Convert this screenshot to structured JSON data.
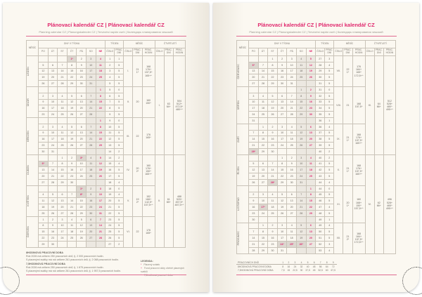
{
  "title": "Plánovací kalendář CZ | Plánovací kalendář CZ",
  "subtitle": "Planning calendar CZ | Planungskalender CZ | Tervezési naptár cseh | Календарь планирования чешский",
  "headers": {
    "month": "MĚSÍC",
    "days_group": "DNY V TÝDNU",
    "week_group": "TÝDEN",
    "month_group": "MĚSÍC",
    "quarter_group": "ČTVRTLETÍ",
    "days": [
      "PO",
      "ÚT",
      "ST",
      "ČT",
      "PÁ",
      "SO",
      "NE"
    ],
    "cislo": "ČÍSLO",
    "prac_dni": "PRAC. DNÍ",
    "prac_hodin": "PRAC. HODIN"
  },
  "colors": {
    "accent": "#e0296e",
    "weekend_bg": "#ece8e1",
    "holiday_bg": "#dcd7cf"
  },
  "pages": [
    {
      "months": [
        {
          "name": "LEDEN",
          "roman": "I.",
          "days": "21",
          "hol": "1*",
          "hours": [
            "168",
            "176+",
            "157,5^",
            "165+^"
          ],
          "rows": [
            [
              "",
              "",
              "",
              "1*",
              "2",
              "3",
              "4"
            ],
            [
              "5",
              "6",
              "7",
              "8",
              "9",
              "10",
              "11"
            ],
            [
              "12",
              "13",
              "14",
              "15",
              "16",
              "17",
              "18"
            ],
            [
              "19",
              "20",
              "21",
              "22",
              "23",
              "24",
              "25"
            ],
            [
              "26",
              "27",
              "28",
              "29",
              "30",
              "31",
              ""
            ]
          ],
          "weeks": [
            "1",
            "2",
            "3",
            "4",
            "5"
          ],
          "work": [
            "1",
            "5",
            "5",
            "5",
            "5"
          ]
        },
        {
          "name": "ÚNOR",
          "roman": "II.",
          "days": "20",
          "hol": "",
          "hours": [
            "160",
            "150^"
          ],
          "rows": [
            [
              "",
              "",
              "",
              "",
              "",
              "",
              "1"
            ],
            [
              "2",
              "3",
              "4",
              "5",
              "6",
              "7",
              "8"
            ],
            [
              "9",
              "10",
              "11",
              "12",
              "13",
              "14",
              "15"
            ],
            [
              "16",
              "17",
              "18",
              "19",
              "20",
              "21",
              "22"
            ],
            [
              "23",
              "24",
              "25",
              "26",
              "27",
              "28",
              ""
            ]
          ],
          "weeks": [
            "5",
            "6",
            "7",
            "8",
            "9"
          ],
          "work": [
            "0",
            "5",
            "5",
            "5",
            "5"
          ]
        },
        {
          "name": "BŘEZEN",
          "roman": "III.",
          "days": "22",
          "hol": "",
          "hours": [
            "176",
            "165^"
          ],
          "rows": [
            [
              "",
              "",
              "",
              "",
              "",
              "",
              "1"
            ],
            [
              "2",
              "3",
              "4",
              "5",
              "6",
              "7",
              "8"
            ],
            [
              "9",
              "10",
              "11",
              "12",
              "13",
              "14",
              "15"
            ],
            [
              "16",
              "17",
              "18",
              "19",
              "20",
              "21",
              "22"
            ],
            [
              "23",
              "24",
              "25",
              "26",
              "27",
              "28",
              "29"
            ],
            [
              "30",
              "31",
              "",
              "",
              "",
              "",
              ""
            ]
          ],
          "weeks": [
            "9",
            "10",
            "11",
            "12",
            "13",
            "14"
          ],
          "work": [
            "0",
            "5",
            "5",
            "5",
            "5",
            "2"
          ]
        },
        {
          "name": "DUBEN",
          "roman": "IV.",
          "days": "20",
          "hol": "2*",
          "hours": [
            "160",
            "176+",
            "150^",
            "165+^"
          ],
          "rows": [
            [
              "",
              "",
              "1",
              "2",
              "3*",
              "4",
              "5"
            ],
            [
              "6*",
              "7",
              "8",
              "9",
              "10",
              "11",
              "12"
            ],
            [
              "13",
              "14",
              "15",
              "16",
              "17",
              "18",
              "19"
            ],
            [
              "20",
              "21",
              "22",
              "23",
              "24",
              "25",
              "26"
            ],
            [
              "27",
              "28",
              "29",
              "30",
              "",
              "",
              ""
            ]
          ],
          "weeks": [
            "14",
            "15",
            "16",
            "17",
            "18"
          ],
          "work": [
            "2",
            "4",
            "5",
            "5",
            "4"
          ]
        },
        {
          "name": "KVĚTEN",
          "roman": "V.",
          "days": "19",
          "hol": "2*",
          "hours": [
            "152",
            "168+",
            "142,5^",
            "157,5+^"
          ],
          "rows": [
            [
              "",
              "",
              "",
              "",
              "1*",
              "2",
              "3"
            ],
            [
              "4",
              "5",
              "6",
              "7",
              "8*",
              "9",
              "10"
            ],
            [
              "11",
              "12",
              "13",
              "14",
              "15",
              "16",
              "17"
            ],
            [
              "18",
              "19",
              "20",
              "21",
              "22",
              "23",
              "24"
            ],
            [
              "25",
              "26",
              "27",
              "28",
              "29",
              "30",
              "31"
            ]
          ],
          "weeks": [
            "18",
            "19",
            "20",
            "21",
            "22"
          ],
          "work": [
            "0",
            "4",
            "5",
            "5",
            "5"
          ]
        },
        {
          "name": "ČERVEN",
          "roman": "VI.",
          "days": "22",
          "hol": "",
          "hours": [
            "176",
            "165^"
          ],
          "rows": [
            [
              "1",
              "2",
              "3",
              "4",
              "5",
              "6",
              "7"
            ],
            [
              "8",
              "9",
              "10",
              "11",
              "12",
              "13",
              "14"
            ],
            [
              "15",
              "16",
              "17",
              "18",
              "19",
              "20",
              "21"
            ],
            [
              "22",
              "23",
              "24",
              "25",
              "26",
              "27",
              "28"
            ],
            [
              "29",
              "30",
              "",
              "",
              "",
              "",
              ""
            ]
          ],
          "weeks": [
            "23",
            "24",
            "25",
            "26",
            "27"
          ],
          "work": [
            "5",
            "5",
            "5",
            "5",
            "2"
          ]
        }
      ],
      "quarters": [
        {
          "roman": "I.",
          "days": "63",
          "days_plus": "64+",
          "hours": [
            "504",
            "512+",
            "472,5^",
            "480+^"
          ]
        },
        {
          "roman": "II.",
          "days": "61",
          "days_plus": "65+",
          "hours": [
            "488",
            "520+",
            "457,5^",
            "487,5+^"
          ]
        }
      ],
      "footer": {
        "h8_title": "8HODINOVÁ PRACOVNÍ DOBA",
        "h8_l1": "Rok 2026 má celkem 250 pracovních dnů, tj. 2 000 pracovních hodin.",
        "h8_l2": "S placenými svátky má rok celkem 261 pracovních dnů, tj. 2 088 pracovních hodin.",
        "h75_title": "7,5HODINOVÁ PRACOVNÍ DOBA",
        "h75_l1": "Rok 2026 má celkem 250 pracovních dnů, tj. 1 875 pracovních hodin.",
        "h75_l2": "S placenými svátky má rok celkem 261 pracovních dnů, tj. 1 957,5 pracovních hodin.",
        "legend_title": "LEGENDA:",
        "legend": [
          {
            "mark": "*",
            "text": "Placený svátek"
          },
          {
            "mark": "+",
            "text": "Fond pracovní doby včetně placených svátků"
          },
          {
            "mark": "^",
            "text": "7,5hodinová pracovní doba"
          }
        ]
      }
    },
    {
      "months": [
        {
          "name": "ČERVENEC",
          "roman": "VII.",
          "days": "22",
          "hol": "1*",
          "hours": [
            "176",
            "184+",
            "165^",
            "172,5+^"
          ],
          "rows": [
            [
              "",
              "",
              "1",
              "2",
              "3",
              "4",
              "5"
            ],
            [
              "6*",
              "7",
              "8",
              "9",
              "10",
              "11",
              "12"
            ],
            [
              "13",
              "14",
              "15",
              "16",
              "17",
              "18",
              "19"
            ],
            [
              "20",
              "21",
              "22",
              "23",
              "24",
              "25",
              "26"
            ],
            [
              "27",
              "28",
              "29",
              "30",
              "31",
              "",
              ""
            ]
          ],
          "weeks": [
            "27",
            "28",
            "29",
            "30",
            "31"
          ],
          "work": [
            "3",
            "4",
            "5",
            "5",
            "5"
          ]
        },
        {
          "name": "SRPEN",
          "roman": "VIII.",
          "days": "21",
          "hol": "",
          "hours": [
            "168",
            "157,5^"
          ],
          "rows": [
            [
              "",
              "",
              "",
              "",
              "",
              "1",
              "2"
            ],
            [
              "3",
              "4",
              "5",
              "6",
              "7",
              "8",
              "9"
            ],
            [
              "10",
              "11",
              "12",
              "13",
              "14",
              "15",
              "16"
            ],
            [
              "17",
              "18",
              "19",
              "20",
              "21",
              "22",
              "23"
            ],
            [
              "24",
              "25",
              "26",
              "27",
              "28",
              "29",
              "30"
            ],
            [
              "31",
              "",
              "",
              "",
              "",
              "",
              ""
            ]
          ],
          "weeks": [
            "31",
            "32",
            "33",
            "34",
            "35",
            "36"
          ],
          "work": [
            "0",
            "5",
            "5",
            "5",
            "5",
            "1"
          ]
        },
        {
          "name": "ZÁŘÍ",
          "roman": "IX.",
          "days": "21",
          "hol": "1*",
          "hours": [
            "168",
            "176+",
            "157,5^",
            "165+^"
          ],
          "rows": [
            [
              "",
              "1",
              "2",
              "3",
              "4",
              "5",
              "6"
            ],
            [
              "7",
              "8",
              "9",
              "10",
              "11",
              "12",
              "13"
            ],
            [
              "14",
              "15",
              "16",
              "17",
              "18",
              "19",
              "20"
            ],
            [
              "21",
              "22",
              "23",
              "24",
              "25",
              "26",
              "27"
            ],
            [
              "28*",
              "29",
              "30",
              "",
              "",
              "",
              ""
            ]
          ],
          "weeks": [
            "36",
            "37",
            "38",
            "39",
            "40"
          ],
          "work": [
            "4",
            "5",
            "5",
            "5",
            "2"
          ]
        },
        {
          "name": "ŘÍJEN",
          "roman": "X.",
          "days": "21",
          "hol": "1*",
          "hours": [
            "168",
            "176+",
            "157,5^",
            "165+^"
          ],
          "rows": [
            [
              "",
              "",
              "",
              "1",
              "2",
              "3",
              "4"
            ],
            [
              "5",
              "6",
              "7",
              "8",
              "9",
              "10",
              "11"
            ],
            [
              "12",
              "13",
              "14",
              "15",
              "16",
              "17",
              "18"
            ],
            [
              "19",
              "20",
              "21",
              "22",
              "23",
              "24",
              "25"
            ],
            [
              "26",
              "27",
              "28*",
              "29",
              "30",
              "31",
              ""
            ]
          ],
          "weeks": [
            "40",
            "41",
            "42",
            "43",
            "44"
          ],
          "work": [
            "2",
            "5",
            "5",
            "5",
            "4"
          ]
        },
        {
          "name": "LISTOPAD",
          "roman": "XI.",
          "days": "20",
          "hol": "1*",
          "hours": [
            "160",
            "168+",
            "150^",
            "157,5+^"
          ],
          "rows": [
            [
              "",
              "",
              "",
              "",
              "",
              "",
              "1"
            ],
            [
              "2",
              "3",
              "4",
              "5",
              "6",
              "7",
              "8"
            ],
            [
              "9",
              "10",
              "11",
              "12",
              "13",
              "14",
              "15"
            ],
            [
              "16",
              "17*",
              "18",
              "19",
              "20",
              "21",
              "22"
            ],
            [
              "23",
              "24",
              "25",
              "26",
              "27",
              "28",
              "29"
            ],
            [
              "30",
              "",
              "",
              "",
              "",
              "",
              ""
            ]
          ],
          "weeks": [
            "44",
            "45",
            "46",
            "47",
            "48",
            "49"
          ],
          "work": [
            "0",
            "5",
            "5",
            "4",
            "5",
            "1"
          ]
        },
        {
          "name": "PROSINEC",
          "roman": "XII.",
          "days": "21",
          "hol": "2*",
          "hours": [
            "168",
            "184+",
            "157,5^",
            "172,5+^"
          ],
          "rows": [
            [
              "",
              "1",
              "2",
              "3",
              "4",
              "5",
              "6"
            ],
            [
              "7",
              "8",
              "9",
              "10",
              "11",
              "12",
              "13"
            ],
            [
              "14",
              "15",
              "16",
              "17",
              "18",
              "19",
              "20"
            ],
            [
              "21",
              "22",
              "23",
              "24*",
              "25*",
              "26*",
              "27"
            ],
            [
              "28",
              "29",
              "30",
              "31",
              "",
              "",
              ""
            ]
          ],
          "weeks": [
            "49",
            "50",
            "51",
            "52",
            "53"
          ],
          "work": [
            "4",
            "5",
            "5",
            "3",
            "4"
          ]
        }
      ],
      "quarters": [
        {
          "roman": "III.",
          "days": "64",
          "days_plus": "66+",
          "hours": [
            "512",
            "528+",
            "480^",
            "495+^"
          ]
        },
        {
          "roman": "IV.",
          "days": "62",
          "days_plus": "66+",
          "hours": [
            "496",
            "528+",
            "465^",
            "495+^"
          ]
        }
      ],
      "summary": [
        {
          "label": "PRACOVNÍCH DNŮ",
          "values": [
            "1",
            "2",
            "3",
            "4",
            "5",
            "6",
            "7",
            "8",
            "9"
          ]
        },
        {
          "label": "8HODINOVÁ PRACOVNÍ DOBA",
          "values": [
            "8",
            "16",
            "24",
            "32",
            "40",
            "48",
            "56",
            "64",
            "72"
          ]
        },
        {
          "label": "7,5HODINOVÁ PRACOVNÍ DOBA",
          "values": [
            "7,5",
            "15",
            "22,5",
            "30",
            "37,5",
            "45",
            "52,5",
            "60",
            "67,5"
          ]
        }
      ]
    }
  ]
}
